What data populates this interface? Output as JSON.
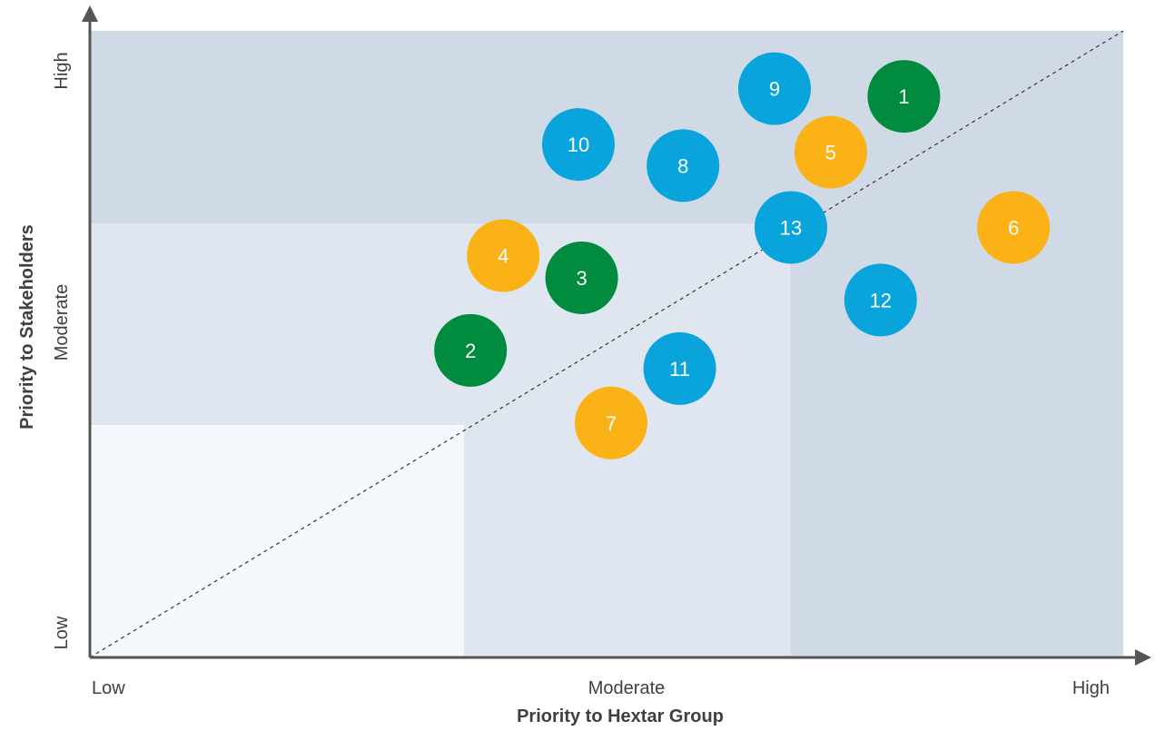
{
  "chart_data": {
    "type": "scatter",
    "title": "",
    "xlabel": "Priority to Hextar Group",
    "ylabel": "Priority to Stakeholders",
    "x_ticks": [
      "Low",
      "Moderate",
      "High"
    ],
    "y_ticks": [
      "Low",
      "Moderate",
      "High"
    ],
    "xlim": [
      0,
      3
    ],
    "ylim": [
      0,
      3
    ],
    "zones": [
      {
        "level": "low",
        "x_max": 1.0,
        "y_max": 1.0,
        "color": "#f5f8fc"
      },
      {
        "level": "moderate",
        "x_max": 2.0,
        "y_max": 2.0,
        "color": "#e0e6ef"
      },
      {
        "level": "high",
        "x_max": 3.0,
        "y_max": 3.0,
        "color": "#d0dae7"
      }
    ],
    "diagonal_reference": true,
    "colors": {
      "green": "#008b3e",
      "blue": "#0aa4dd",
      "yellow": "#fbb217"
    },
    "points": [
      {
        "label": "1",
        "x": 2.34,
        "y": 2.66,
        "color": "green"
      },
      {
        "label": "2",
        "x": 1.02,
        "y": 1.37,
        "color": "green"
      },
      {
        "label": "3",
        "x": 1.36,
        "y": 1.73,
        "color": "green"
      },
      {
        "label": "4",
        "x": 1.12,
        "y": 1.84,
        "color": "yellow"
      },
      {
        "label": "5",
        "x": 2.12,
        "y": 2.37,
        "color": "yellow"
      },
      {
        "label": "6",
        "x": 2.67,
        "y": 1.98,
        "color": "yellow"
      },
      {
        "label": "7",
        "x": 1.45,
        "y": 1.01,
        "color": "yellow"
      },
      {
        "label": "8",
        "x": 1.67,
        "y": 2.3,
        "color": "blue"
      },
      {
        "label": "9",
        "x": 1.95,
        "y": 2.7,
        "color": "blue"
      },
      {
        "label": "10",
        "x": 1.35,
        "y": 2.41,
        "color": "blue"
      },
      {
        "label": "11",
        "x": 1.66,
        "y": 1.28,
        "color": "blue"
      },
      {
        "label": "12",
        "x": 2.27,
        "y": 1.62,
        "color": "blue"
      },
      {
        "label": "13",
        "x": 2.0,
        "y": 1.98,
        "color": "blue"
      }
    ]
  }
}
